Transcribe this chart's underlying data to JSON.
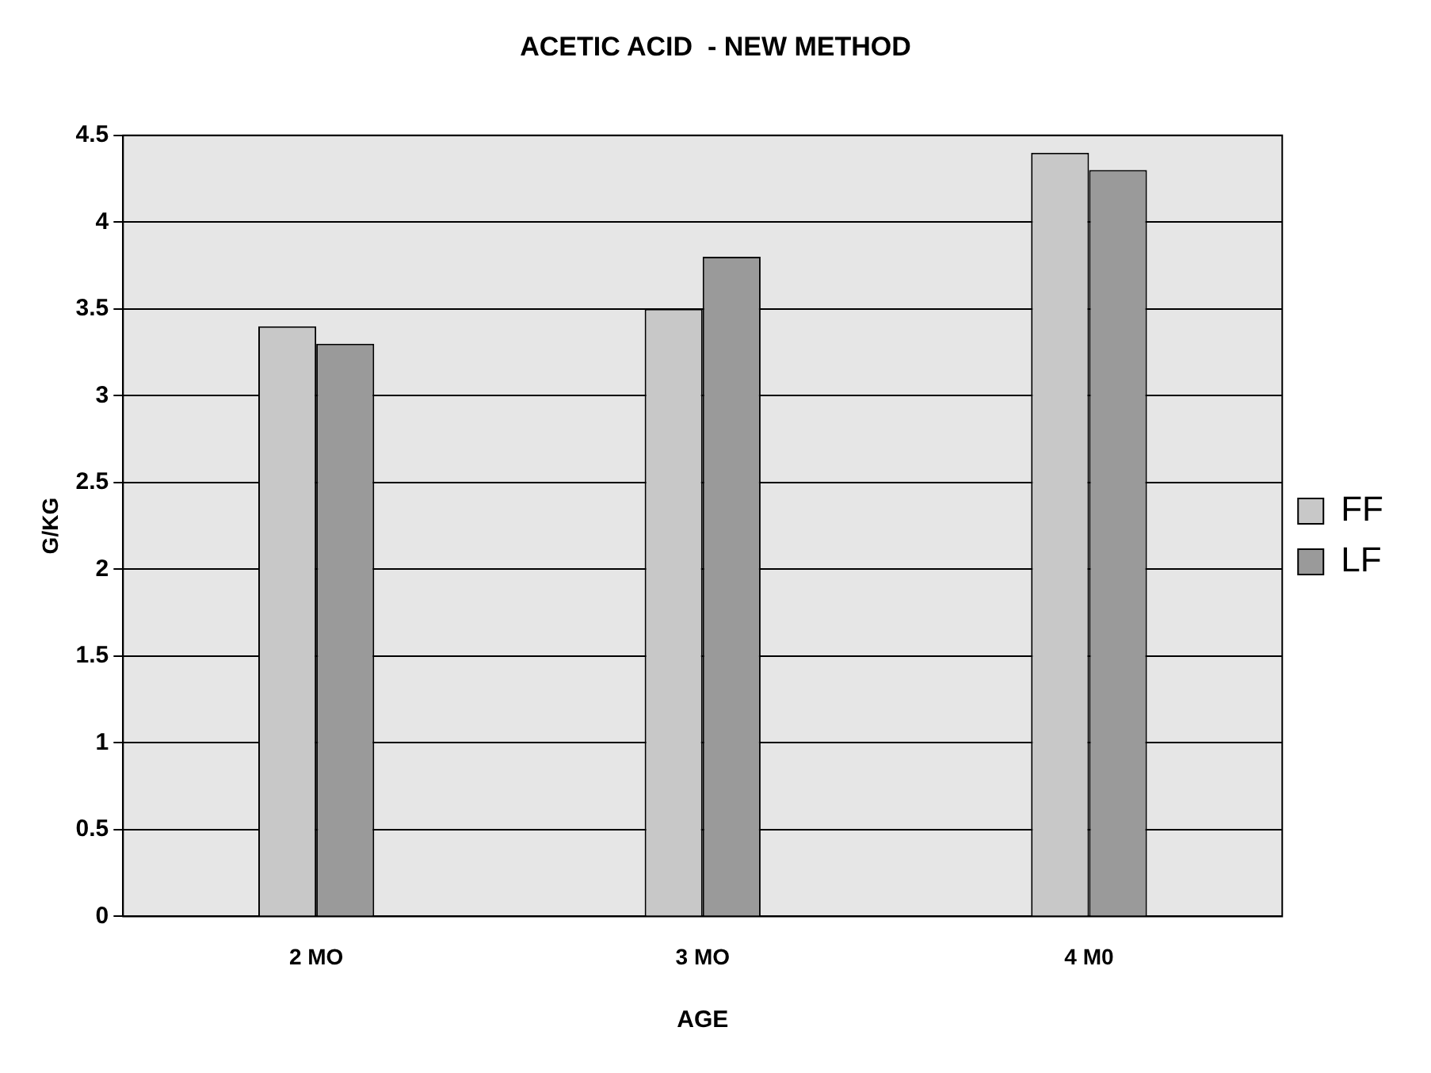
{
  "chart_data": {
    "type": "bar",
    "title": "ACETIC ACID  - NEW METHOD",
    "xlabel": "AGE",
    "ylabel": "G/KG",
    "categories": [
      "2 MO",
      "3 MO",
      "4 M0"
    ],
    "series": [
      {
        "name": "FF",
        "color": "#c8c8c8",
        "values": [
          3.4,
          3.5,
          4.4
        ]
      },
      {
        "name": "LF",
        "color": "#9a9a9a",
        "values": [
          3.3,
          3.8,
          4.3
        ]
      }
    ],
    "ylim": [
      0,
      4.5
    ],
    "yticks": [
      0,
      0.5,
      1,
      1.5,
      2,
      2.5,
      3,
      3.5,
      4,
      4.5
    ],
    "grid": "y",
    "legend": "right"
  }
}
